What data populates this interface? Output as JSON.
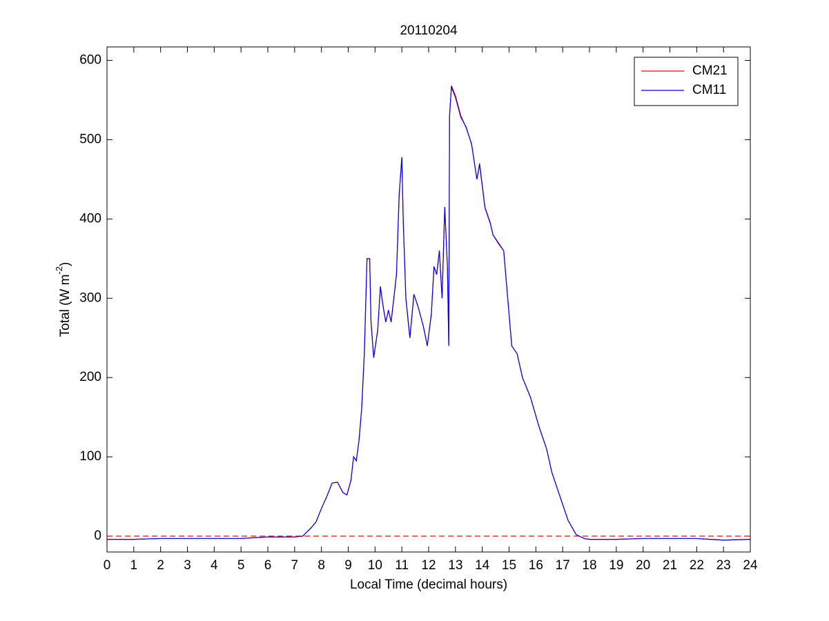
{
  "chart_data": {
    "type": "line",
    "title": "20110204",
    "xlabel": "Local Time (decimal hours)",
    "ylabel": {
      "text": "Total (W m",
      "sup": "-2",
      "tail": ")"
    },
    "xlim": [
      0,
      24
    ],
    "ylim": [
      -20,
      617
    ],
    "xticks": [
      0,
      1,
      2,
      3,
      4,
      5,
      6,
      7,
      8,
      9,
      10,
      11,
      12,
      13,
      14,
      15,
      16,
      17,
      18,
      19,
      20,
      21,
      22,
      23,
      24
    ],
    "yticks": [
      0,
      100,
      200,
      300,
      400,
      500,
      600
    ],
    "hline": {
      "value": 0,
      "color": "#ff0000"
    },
    "legend": "upper right",
    "x": [
      0,
      1,
      2,
      3,
      4,
      5,
      6,
      7,
      7.3,
      7.6,
      7.8,
      8.0,
      8.2,
      8.4,
      8.6,
      8.8,
      8.95,
      9.1,
      9.2,
      9.3,
      9.4,
      9.5,
      9.6,
      9.7,
      9.8,
      9.85,
      9.95,
      10.1,
      10.2,
      10.3,
      10.4,
      10.5,
      10.6,
      10.7,
      10.8,
      10.9,
      11.0,
      11.05,
      11.15,
      11.3,
      11.45,
      11.6,
      11.8,
      11.95,
      12.1,
      12.2,
      12.3,
      12.4,
      12.5,
      12.6,
      12.7,
      12.75,
      12.78,
      12.85,
      13.0,
      13.2,
      13.4,
      13.6,
      13.8,
      13.9,
      14.1,
      14.3,
      14.4,
      14.6,
      14.8,
      14.95,
      15.1,
      15.3,
      15.5,
      15.8,
      16.1,
      16.4,
      16.6,
      16.9,
      17.2,
      17.5,
      17.8,
      18,
      19,
      20,
      21,
      22,
      23,
      24
    ],
    "series": [
      {
        "name": "CM21",
        "color": "#ff0000",
        "values": [
          -4,
          -4,
          -3,
          -3,
          -3,
          -3,
          -1,
          -1,
          0,
          10,
          18,
          35,
          50,
          67,
          68,
          55,
          52,
          70,
          100,
          95,
          120,
          160,
          230,
          350,
          350,
          270,
          225,
          260,
          315,
          290,
          270,
          285,
          270,
          300,
          330,
          430,
          478,
          400,
          300,
          250,
          305,
          290,
          265,
          240,
          280,
          340,
          330,
          360,
          300,
          415,
          340,
          240,
          530,
          566,
          553,
          528,
          516,
          494,
          450,
          468,
          414,
          394,
          380,
          369,
          360,
          300,
          240,
          230,
          200,
          175,
          140,
          110,
          80,
          50,
          20,
          2,
          -3,
          -4,
          -4,
          -3,
          -3,
          -3,
          -5,
          -4
        ]
      },
      {
        "name": "CM11",
        "color": "#0000ff",
        "values": [
          -4,
          -4,
          -3,
          -3,
          -3,
          -3,
          -1,
          -1,
          0,
          10,
          18,
          35,
          50,
          67,
          68,
          55,
          52,
          70,
          100,
          95,
          120,
          160,
          230,
          350,
          350,
          270,
          225,
          260,
          315,
          290,
          270,
          285,
          270,
          300,
          330,
          430,
          478,
          400,
          300,
          250,
          305,
          290,
          265,
          240,
          280,
          340,
          330,
          360,
          300,
          415,
          340,
          240,
          530,
          568,
          555,
          530,
          515,
          495,
          450,
          470,
          415,
          395,
          380,
          370,
          360,
          300,
          240,
          230,
          200,
          175,
          140,
          110,
          80,
          50,
          20,
          2,
          -3,
          -4,
          -4,
          -3,
          -3,
          -3,
          -5,
          -4
        ]
      }
    ]
  }
}
